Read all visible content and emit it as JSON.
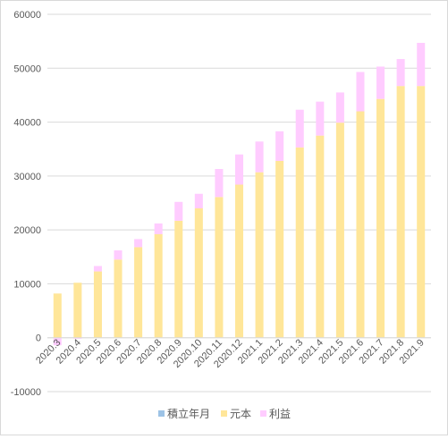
{
  "chart_data": {
    "type": "bar",
    "stacked": true,
    "categories": [
      "2020.3",
      "2020.4",
      "2020.5",
      "2020.6",
      "2020.7",
      "2020.8",
      "2020.9",
      "2020.10",
      "2020.11",
      "2020.12",
      "2021.1",
      "2021.2",
      "2021.3",
      "2021.4",
      "2021.5",
      "2021.6",
      "2021.7",
      "2021.8",
      "2021.9"
    ],
    "series": [
      {
        "name": "積立年月",
        "color": "#9dc3e6",
        "values": [
          0,
          0,
          0,
          0,
          0,
          0,
          0,
          0,
          0,
          0,
          0,
          0,
          0,
          0,
          0,
          0,
          0,
          0,
          0
        ]
      },
      {
        "name": "元本",
        "color": "#ffe699",
        "values": [
          8200,
          10200,
          12300,
          14500,
          16800,
          19200,
          21700,
          24000,
          26100,
          28400,
          30700,
          32800,
          35300,
          37500,
          39900,
          42000,
          44300,
          46700,
          46700
        ]
      },
      {
        "name": "利益",
        "color": "#ffccff",
        "values": [
          -1400,
          -200,
          1000,
          1700,
          1500,
          2000,
          3500,
          2700,
          5200,
          5600,
          5700,
          5500,
          7000,
          6300,
          5600,
          7300,
          6000,
          5000,
          8000
        ]
      }
    ],
    "ylim": [
      -10000,
      60000
    ],
    "yticks": [
      -10000,
      0,
      10000,
      20000,
      30000,
      40000,
      50000,
      60000
    ],
    "grid": true,
    "legend": "bottom"
  },
  "legend": {
    "items": [
      {
        "label": "積立年月",
        "color": "#9dc3e6"
      },
      {
        "label": "元本",
        "color": "#ffe699"
      },
      {
        "label": "利益",
        "color": "#ffccff"
      }
    ]
  }
}
